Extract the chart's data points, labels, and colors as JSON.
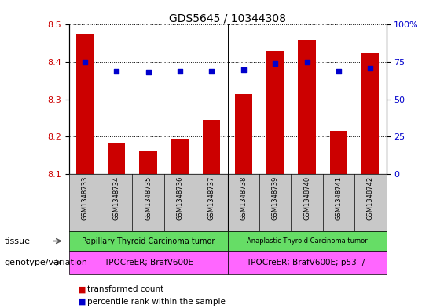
{
  "title": "GDS5645 / 10344308",
  "samples": [
    "GSM1348733",
    "GSM1348734",
    "GSM1348735",
    "GSM1348736",
    "GSM1348737",
    "GSM1348738",
    "GSM1348739",
    "GSM1348740",
    "GSM1348741",
    "GSM1348742"
  ],
  "transformed_count": [
    8.475,
    8.185,
    8.16,
    8.195,
    8.245,
    8.315,
    8.43,
    8.46,
    8.215,
    8.425
  ],
  "percentile_rank": [
    75,
    69,
    68,
    69,
    69,
    70,
    74,
    75,
    69,
    71
  ],
  "ylim_left": [
    8.1,
    8.5
  ],
  "ylim_right": [
    0,
    100
  ],
  "yticks_left": [
    8.1,
    8.2,
    8.3,
    8.4,
    8.5
  ],
  "yticks_right": [
    0,
    25,
    50,
    75,
    100
  ],
  "bar_color": "#cc0000",
  "dot_color": "#0000cc",
  "tissue_groups": [
    {
      "label": "Papillary Thyroid Carcinoma tumor",
      "color": "#66dd66"
    },
    {
      "label": "Anaplastic Thyroid Carcinoma tumor",
      "color": "#66dd66"
    }
  ],
  "genotype_groups": [
    {
      "label": "TPOCreER; BrafV600E",
      "color": "#ff66ff"
    },
    {
      "label": "TPOCreER; BrafV600E; p53 -/-",
      "color": "#ff66ff"
    }
  ],
  "tissue_label": "tissue",
  "genotype_label": "genotype/variation",
  "legend_bar_label": "transformed count",
  "legend_dot_label": "percentile rank within the sample",
  "sample_bg_color": "#c8c8c8",
  "group_split": 5
}
